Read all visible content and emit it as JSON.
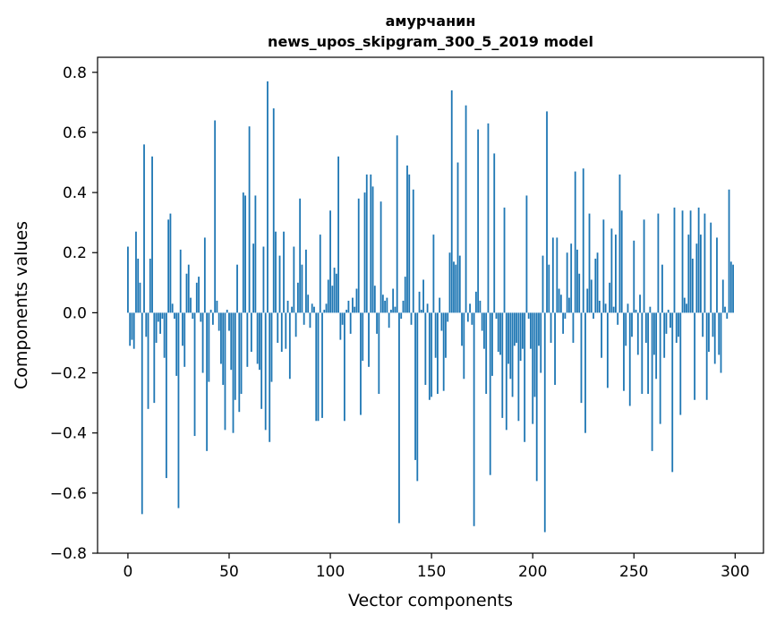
{
  "chart_data": {
    "type": "bar",
    "title_line1": "амурчанин",
    "title_line2": "news_upos_skipgram_300_5_2019 model",
    "xlabel": "Vector components",
    "ylabel": "Components values",
    "xlim": [
      -15,
      314
    ],
    "ylim": [
      -0.8,
      0.85
    ],
    "xticks": [
      0,
      50,
      100,
      150,
      200,
      250,
      300
    ],
    "xtick_labels": [
      "0",
      "50",
      "100",
      "150",
      "200",
      "250",
      "300"
    ],
    "yticks": [
      -0.8,
      -0.6,
      -0.4,
      -0.2,
      0.0,
      0.2,
      0.4,
      0.6,
      0.8
    ],
    "ytick_labels": [
      "−0.8",
      "−0.6",
      "−0.4",
      "−0.2",
      "0.0",
      "0.2",
      "0.4",
      "0.6",
      "0.8"
    ],
    "grid": false,
    "bar_color": "#1f77b4",
    "values": [
      0.22,
      -0.11,
      -0.09,
      -0.12,
      0.27,
      0.18,
      0.1,
      -0.67,
      0.56,
      -0.08,
      -0.32,
      0.18,
      0.52,
      -0.3,
      -0.1,
      -0.03,
      -0.07,
      -0.02,
      -0.15,
      -0.55,
      0.31,
      0.33,
      0.03,
      -0.02,
      -0.21,
      -0.65,
      0.21,
      -0.11,
      -0.18,
      0.13,
      0.16,
      0.05,
      -0.02,
      -0.41,
      0.1,
      0.12,
      -0.03,
      -0.2,
      0.25,
      -0.46,
      -0.23,
      0.01,
      -0.04,
      0.64,
      0.04,
      -0.06,
      -0.17,
      -0.24,
      -0.39,
      0.01,
      -0.06,
      -0.19,
      -0.4,
      -0.29,
      0.16,
      -0.33,
      -0.27,
      0.4,
      0.39,
      -0.18,
      0.62,
      -0.13,
      0.23,
      0.39,
      -0.17,
      -0.19,
      -0.32,
      0.22,
      -0.39,
      0.77,
      -0.43,
      -0.23,
      0.68,
      0.27,
      -0.1,
      0.19,
      -0.13,
      0.27,
      -0.12,
      0.04,
      -0.22,
      0.02,
      0.22,
      -0.08,
      0.1,
      0.38,
      0.16,
      -0.04,
      0.21,
      0.06,
      -0.05,
      0.03,
      0.02,
      -0.36,
      -0.36,
      0.26,
      -0.35,
      0.01,
      0.03,
      0.11,
      0.34,
      0.09,
      0.15,
      0.13,
      0.52,
      -0.09,
      -0.04,
      -0.36,
      0.01,
      0.04,
      -0.07,
      0.05,
      0.02,
      0.08,
      0.38,
      -0.34,
      -0.16,
      0.4,
      0.46,
      -0.18,
      0.46,
      0.42,
      0.09,
      -0.07,
      -0.27,
      0.37,
      0.06,
      0.04,
      0.05,
      -0.05,
      0.01,
      0.08,
      0.02,
      0.59,
      -0.7,
      -0.02,
      0.04,
      0.12,
      0.49,
      0.46,
      -0.04,
      0.41,
      -0.49,
      -0.56,
      0.07,
      0.01,
      0.11,
      -0.24,
      0.03,
      -0.29,
      -0.28,
      0.26,
      -0.15,
      -0.27,
      0.05,
      -0.06,
      -0.26,
      -0.15,
      -0.03,
      0.2,
      0.74,
      0.17,
      0.16,
      0.5,
      0.19,
      -0.11,
      -0.22,
      0.69,
      -0.03,
      0.03,
      -0.04,
      -0.71,
      0.07,
      0.61,
      0.04,
      -0.06,
      -0.12,
      -0.27,
      0.63,
      -0.54,
      -0.21,
      0.53,
      -0.02,
      -0.13,
      -0.14,
      -0.35,
      0.35,
      -0.39,
      -0.17,
      -0.22,
      -0.28,
      -0.11,
      -0.1,
      -0.36,
      -0.16,
      -0.12,
      -0.43,
      0.39,
      -0.02,
      -0.12,
      -0.37,
      -0.28,
      -0.56,
      -0.11,
      -0.2,
      0.19,
      -0.73,
      0.67,
      0.16,
      -0.1,
      0.25,
      -0.24,
      0.25,
      0.08,
      0.06,
      -0.07,
      -0.02,
      0.2,
      0.05,
      0.23,
      -0.1,
      0.47,
      0.21,
      0.13,
      -0.3,
      0.48,
      -0.4,
      0.08,
      0.33,
      0.11,
      -0.02,
      0.18,
      0.2,
      0.04,
      -0.15,
      0.31,
      0.03,
      -0.25,
      0.1,
      0.28,
      0.02,
      0.26,
      -0.04,
      0.46,
      0.34,
      -0.26,
      -0.11,
      0.03,
      -0.31,
      -0.08,
      0.24,
      0.01,
      -0.14,
      0.06,
      -0.27,
      0.31,
      -0.1,
      -0.27,
      0.02,
      -0.46,
      -0.14,
      -0.22,
      0.33,
      -0.37,
      0.16,
      -0.15,
      -0.07,
      0.01,
      -0.05,
      -0.53,
      0.35,
      -0.1,
      -0.08,
      -0.34,
      0.34,
      0.05,
      0.03,
      0.26,
      0.34,
      0.18,
      -0.29,
      0.23,
      0.35,
      0.26,
      -0.08,
      0.33,
      -0.29,
      -0.13,
      0.3,
      -0.08,
      -0.17,
      0.25,
      -0.14,
      -0.2,
      0.11,
      0.02,
      -0.02,
      0.41,
      0.17,
      0.16
    ]
  }
}
